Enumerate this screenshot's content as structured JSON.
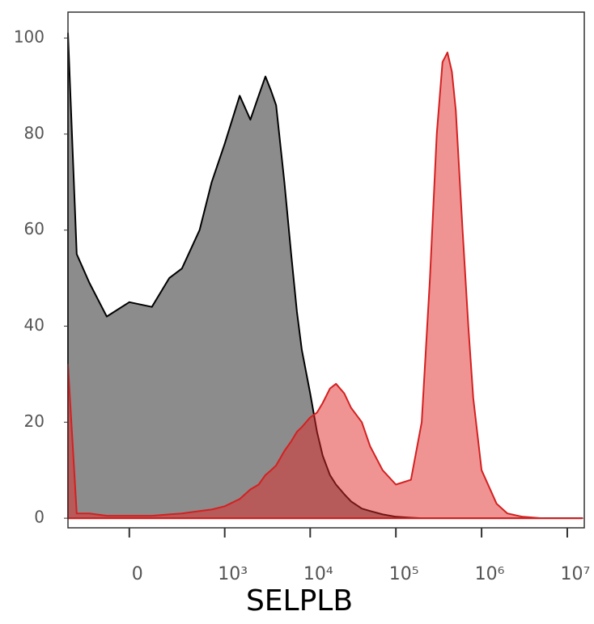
{
  "chart_data": {
    "type": "area",
    "x_label": "SELPLB",
    "xscale": "arcsinh",
    "xscale_cofactor": 155,
    "xlim": [
      -388,
      15800000
    ],
    "xticks": [
      0,
      {
        "value": 1000,
        "label": "10³"
      },
      {
        "value": 10000,
        "label": "10⁴"
      },
      {
        "value": 100000,
        "label": "10⁵"
      },
      {
        "value": 1000000,
        "label": "10⁶"
      },
      {
        "value": 10000000,
        "label": "10⁷"
      }
    ],
    "ylim": [
      -2,
      105.4
    ],
    "yticks": [
      0,
      20,
      40,
      60,
      80,
      100
    ],
    "x": [
      -388,
      -300,
      -200,
      -100,
      0,
      100,
      200,
      300,
      500,
      700,
      1000,
      1500,
      2000,
      2500,
      3000,
      3500,
      4000,
      5000,
      6000,
      7000,
      8000,
      10000,
      12000,
      14000,
      17000,
      20000,
      25000,
      30000,
      40000,
      50000,
      70000,
      100000,
      150000,
      200000,
      250000,
      300000,
      350000,
      400000,
      450000,
      500000,
      600000,
      700000,
      800000,
      1000000,
      1500000,
      2000000,
      3000000,
      5000000,
      10000000,
      15000000
    ],
    "series": [
      {
        "color": "#8c8c8c",
        "stroke": "#000000",
        "values": [
          101,
          55,
          49,
          42,
          45,
          44,
          50,
          52,
          60,
          70,
          78,
          88,
          83,
          88,
          92,
          89,
          86,
          70,
          55,
          43,
          35,
          26,
          18,
          13,
          9,
          7,
          5,
          3.5,
          2,
          1.5,
          0.8,
          0.3,
          0.1,
          0,
          0,
          0,
          0,
          0,
          0,
          0,
          0,
          0,
          0,
          0,
          0,
          0,
          0,
          0,
          0,
          0
        ]
      },
      {
        "color": "rgba(225,40,40,0.5)",
        "stroke": "#d42020",
        "values": [
          32,
          1,
          1,
          0.5,
          0.5,
          0.5,
          0.8,
          1,
          1.5,
          1.8,
          2.5,
          4,
          6,
          7,
          9,
          10,
          11,
          14,
          16,
          18,
          19,
          21,
          22,
          24,
          27,
          28,
          26,
          23,
          20,
          15,
          10,
          7,
          8,
          20,
          50,
          80,
          95,
          97,
          93,
          85,
          60,
          40,
          25,
          10,
          3,
          1,
          0.3,
          0,
          0,
          0
        ]
      }
    ]
  }
}
